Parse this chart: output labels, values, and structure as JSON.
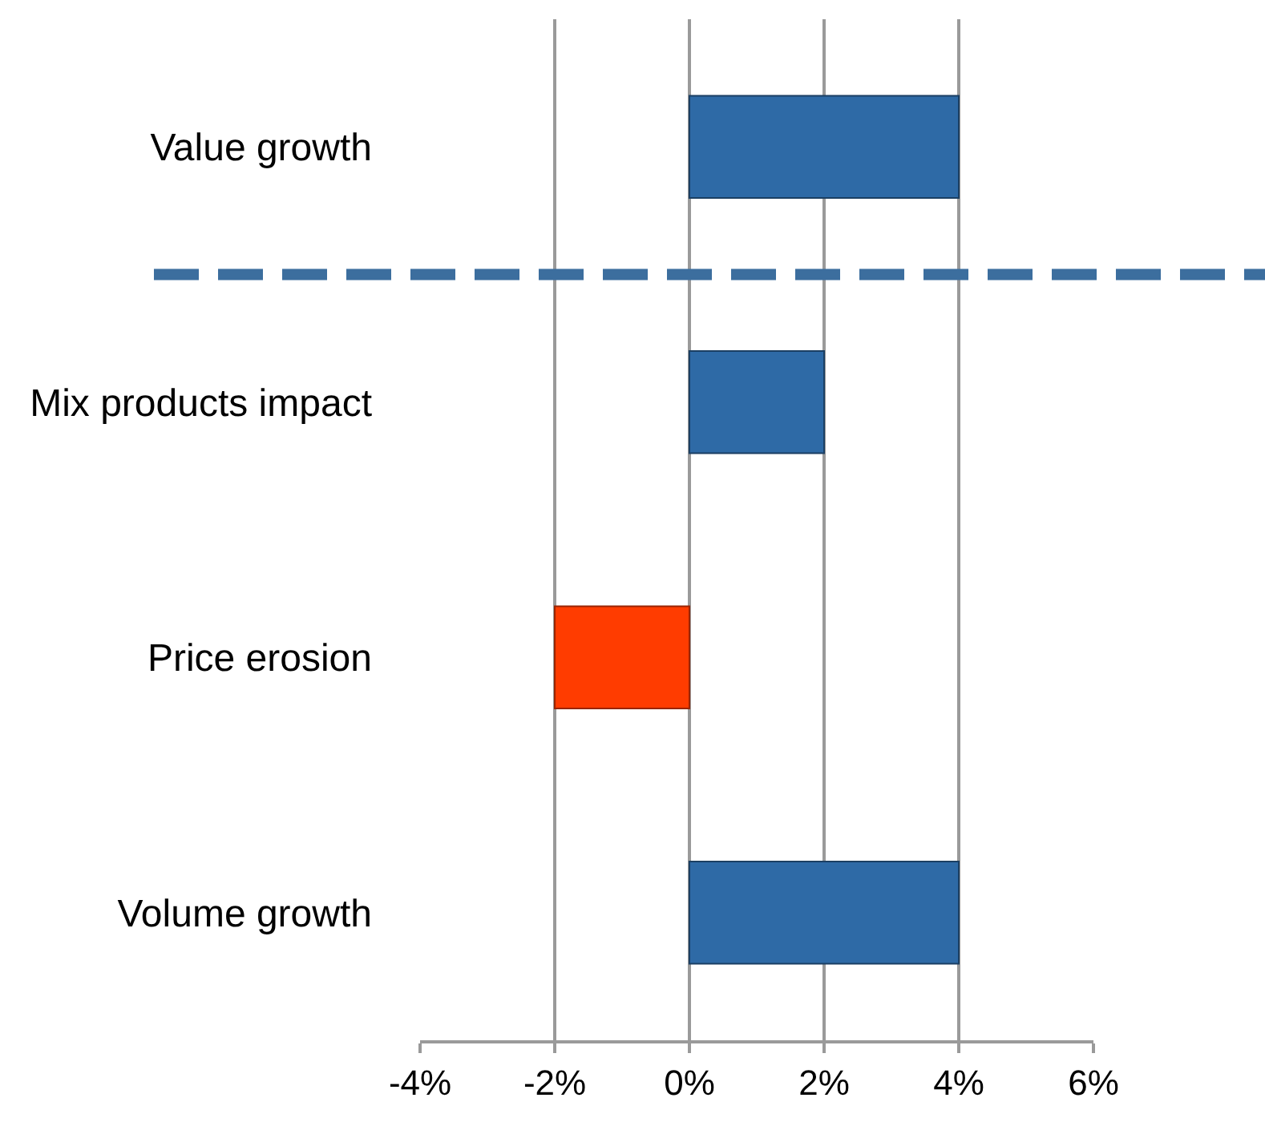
{
  "chart_data": {
    "type": "bar",
    "orientation": "horizontal",
    "categories": [
      "Value growth",
      "Mix products impact",
      "Price erosion",
      "Volume growth"
    ],
    "values": [
      4,
      2,
      -2,
      4
    ],
    "colors": [
      "#2e6aa6",
      "#2e6aa6",
      "#ff3c00",
      "#2e6aa6"
    ],
    "xlim": [
      -4,
      6
    ],
    "xticks": [
      {
        "value": -4,
        "label": "-4%"
      },
      {
        "value": -2,
        "label": "-2%"
      },
      {
        "value": 0,
        "label": "0%"
      },
      {
        "value": 2,
        "label": "2%"
      },
      {
        "value": 4,
        "label": "4%"
      },
      {
        "value": 6,
        "label": "6%"
      }
    ],
    "grid": "x"
  }
}
